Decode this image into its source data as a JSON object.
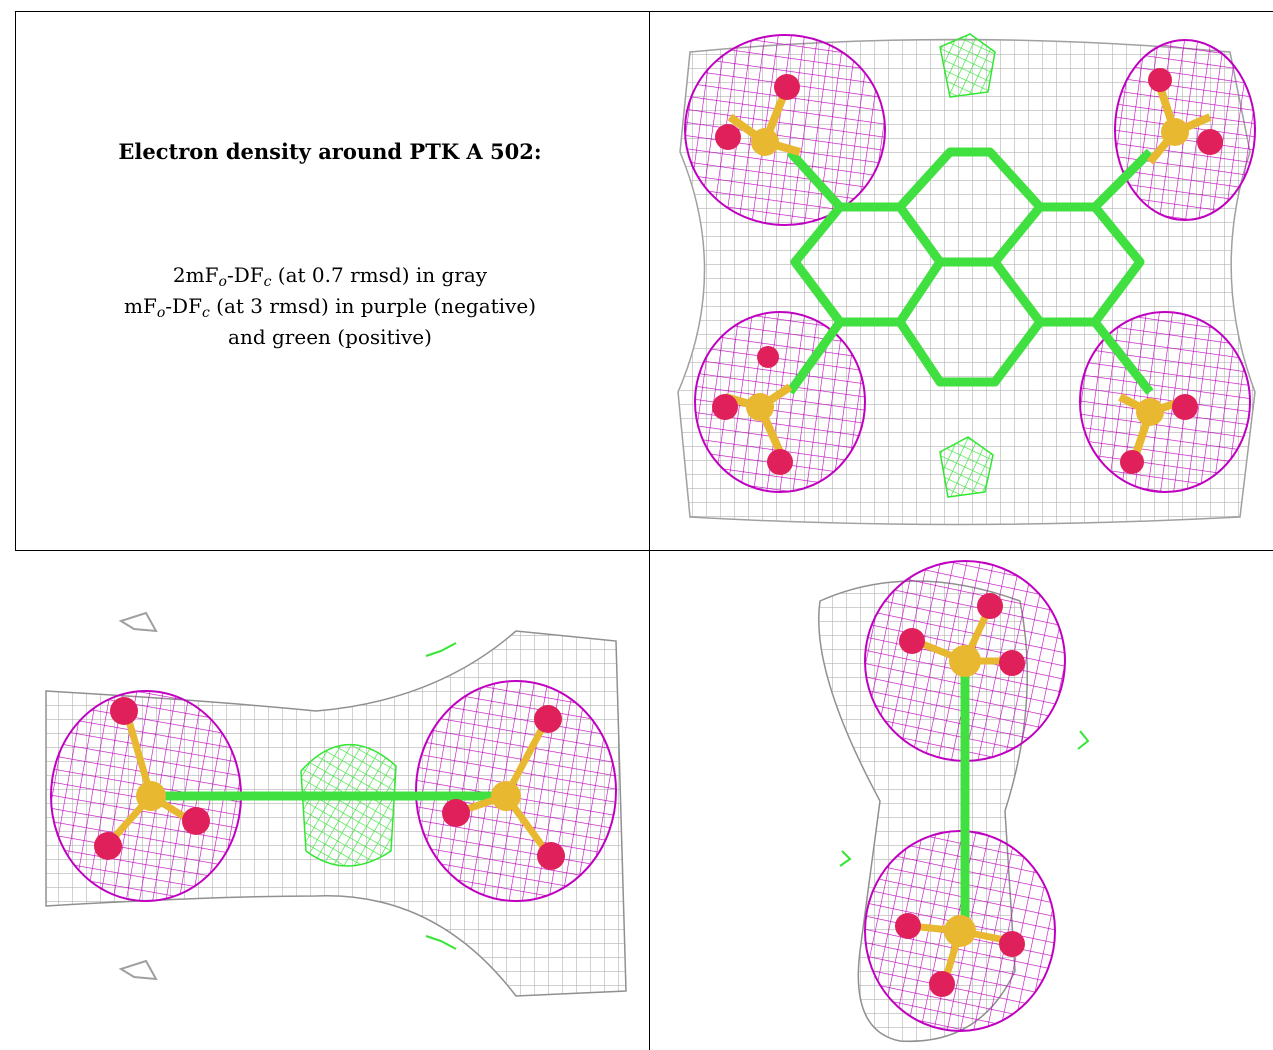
{
  "legend": {
    "title": "Electron density around PTK A 502:",
    "line1": {
      "prefix": "2mF",
      "sub1": "o",
      "mid": "-DF",
      "sub2": "c",
      "suffix": " (at 0.7 rmsd) in gray"
    },
    "line2": {
      "prefix": "mF",
      "sub1": "o",
      "mid": "-DF",
      "sub2": "c",
      "suffix": " (at 3 rmsd) in purple (negative)"
    },
    "line3": "and green (positive)"
  },
  "colors": {
    "gray_mesh": "#b3b3b3",
    "purple_mesh": "#c000c0",
    "green_mesh": "#33e633",
    "oxygen": "#e0205a",
    "sulfur": "#e8b830",
    "bond_green": "#40e040"
  },
  "panels": [
    {
      "name": "top-right",
      "view": "face-on view"
    },
    {
      "name": "bottom-left",
      "view": "edge-on horizontal view"
    },
    {
      "name": "bottom-right",
      "view": "edge-on vertical view"
    }
  ]
}
